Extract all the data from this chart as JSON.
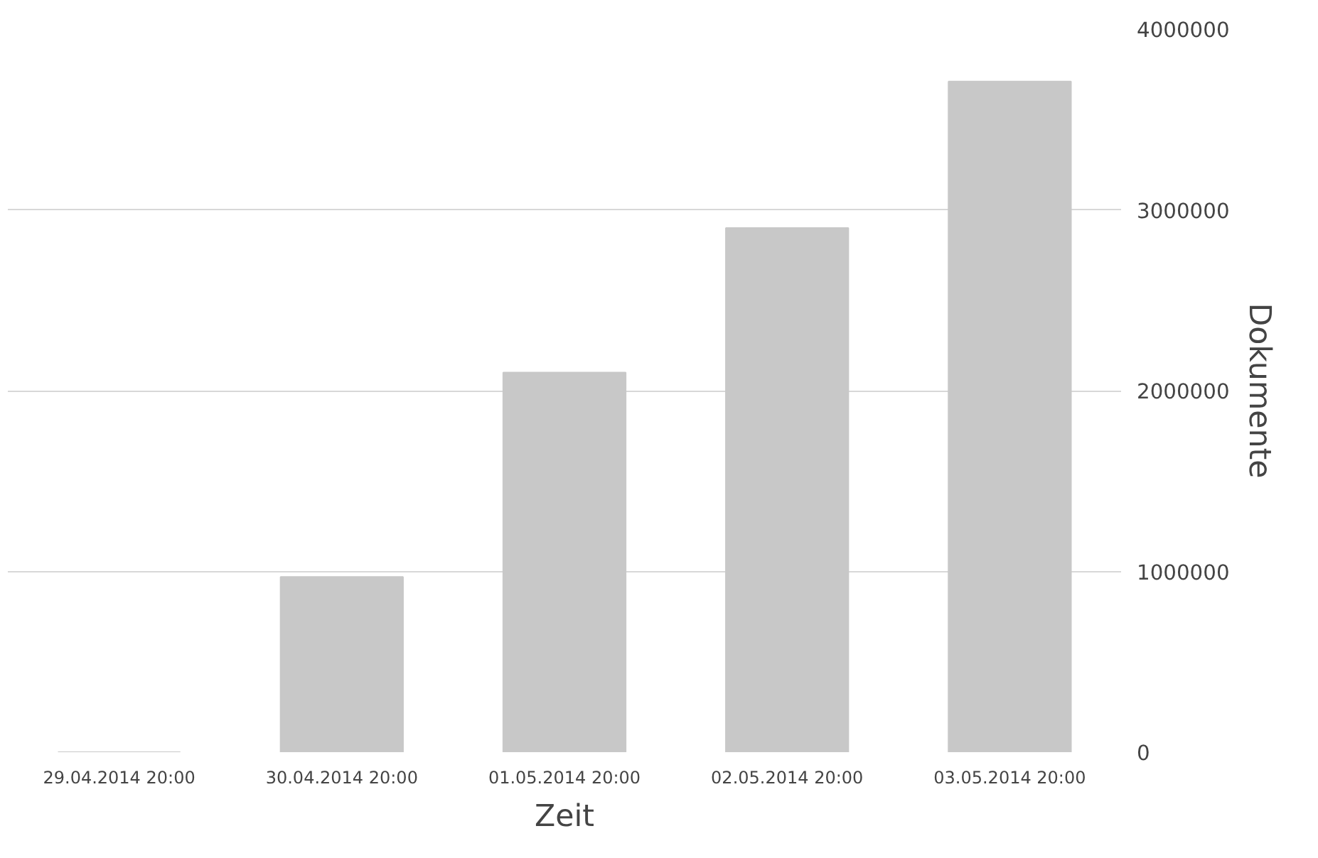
{
  "chart_data": {
    "type": "bar",
    "xlabel": "Zeit",
    "ylabel": "Dokumente",
    "categories": [
      "29.04.2014 20:00",
      "30.04.2014 20:00",
      "01.05.2014 20:00",
      "02.05.2014 20:00",
      "03.05.2014 20:00"
    ],
    "values": [
      0,
      970000,
      2100000,
      2900000,
      3710000
    ],
    "color": "#c8c8c8",
    "ylim": [
      0,
      4000000
    ],
    "yticks": [
      0,
      1000000,
      2000000,
      3000000,
      4000000
    ],
    "grid": "y"
  }
}
